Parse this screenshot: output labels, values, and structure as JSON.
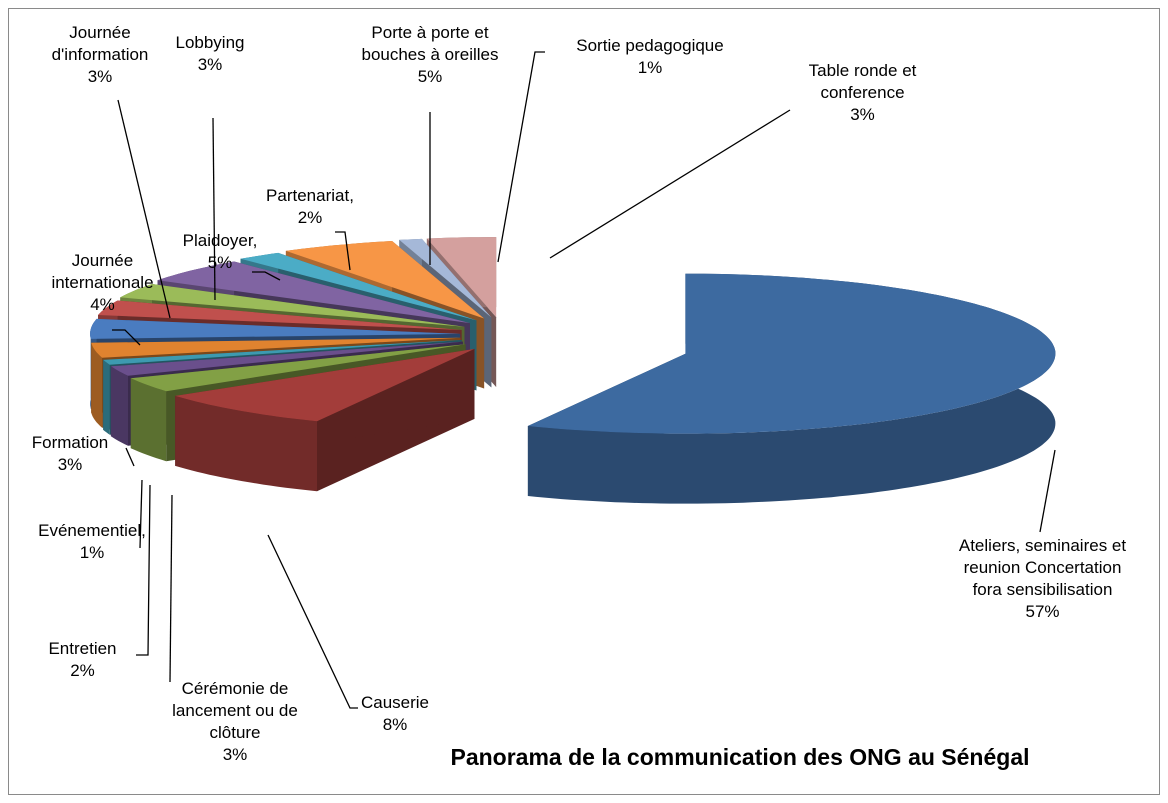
{
  "chart_data": {
    "type": "pie3d",
    "title": "Panorama de la communication des ONG au Sénégal",
    "categories": [
      "Ateliers, seminaires et reunion Concertation fora sensibilisation",
      "Causerie",
      "Cérémonie de lancement ou de clôture",
      "Entretien",
      "Evénementiel,",
      "Formation",
      "Journée internationale",
      "Journée d'information",
      "Lobbying",
      "Plaidoyer,",
      "Partenariat,",
      "Porte à porte et bouches à oreilles",
      "Sortie pedagogique",
      "Table ronde et conference"
    ],
    "values": [
      57,
      8,
      3,
      2,
      1,
      3,
      4,
      3,
      3,
      5,
      2,
      5,
      1,
      3
    ],
    "value_labels": [
      "57%",
      "8%",
      "3%",
      "2%",
      "1%",
      "3%",
      "4%",
      "3%",
      "3%",
      "5%",
      "2%",
      "5%",
      "1%",
      "3%"
    ],
    "colors": [
      "#3d6aa0",
      "#a33d3a",
      "#82a045",
      "#6a4f8c",
      "#3d9ab0",
      "#e0832f",
      "#4a7cc0",
      "#c0504d",
      "#9bbb59",
      "#8064a2",
      "#4bacc6",
      "#f79646",
      "#a5b8d8",
      "#d4a09e"
    ]
  }
}
